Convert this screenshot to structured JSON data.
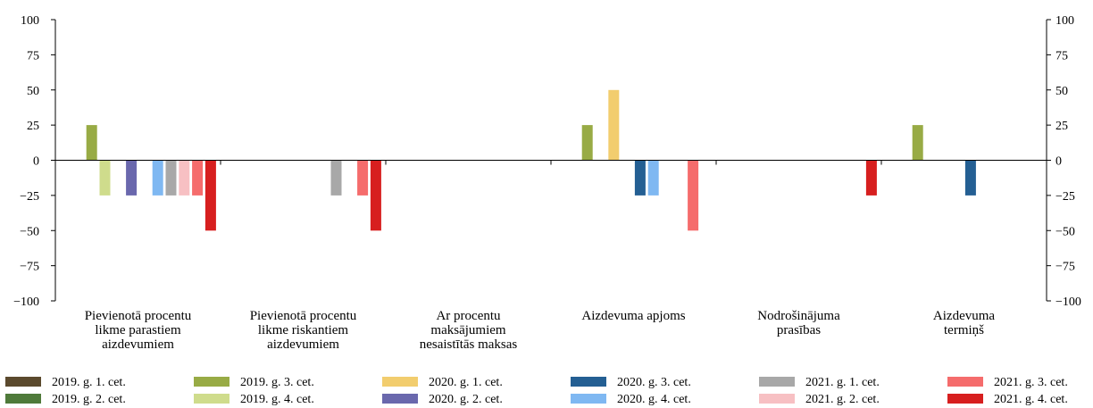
{
  "chart_data": {
    "type": "bar",
    "categories": [
      "Pievienotā procentu likme parastiem aizdevumiem",
      "Pievienotā procentu likme riskantiem aizdevumiem",
      "Ar procentu maksājumiem nesaistītās maksas",
      "Aizdevuma apjoms",
      "Nodrošinājuma prasības",
      "Aizdevuma termiņš"
    ],
    "category_lines": [
      [
        "Pievienotā procentu",
        "likme parastiem",
        "aizdevumiem"
      ],
      [
        "Pievienotā procentu",
        "likme riskantiem",
        "aizdevumiem"
      ],
      [
        "Ar procentu",
        "maksājumiem",
        "nesaistītās maksas"
      ],
      [
        "Aizdevuma apjoms"
      ],
      [
        "Nodrošinājuma",
        "prasības"
      ],
      [
        "Aizdevuma",
        "termiņš"
      ]
    ],
    "series": [
      {
        "name": "2019. g. 1. cet.",
        "color": "#5b4a2e",
        "values": [
          0,
          0,
          0,
          0,
          0,
          0
        ]
      },
      {
        "name": "2019. g. 2. cet.",
        "color": "#4f7a3a",
        "values": [
          0,
          0,
          0,
          0,
          0,
          0
        ]
      },
      {
        "name": "2019. g. 3. cet.",
        "color": "#98ab45",
        "values": [
          25,
          0,
          0,
          25,
          0,
          25
        ]
      },
      {
        "name": "2019. g. 4. cet.",
        "color": "#cfdc8c",
        "values": [
          -25,
          0,
          0,
          0,
          0,
          0
        ]
      },
      {
        "name": "2020. g. 1. cet.",
        "color": "#f2cd6e",
        "values": [
          0,
          0,
          0,
          50,
          0,
          0
        ]
      },
      {
        "name": "2020. g. 2. cet.",
        "color": "#6a68ad",
        "values": [
          -25,
          0,
          0,
          0,
          0,
          0
        ]
      },
      {
        "name": "2020. g. 3. cet.",
        "color": "#245f93",
        "values": [
          0,
          0,
          0,
          -25,
          0,
          -25
        ]
      },
      {
        "name": "2020. g. 4. cet.",
        "color": "#7fb8f2",
        "values": [
          -25,
          0,
          0,
          -25,
          0,
          0
        ]
      },
      {
        "name": "2021. g. 1. cet.",
        "color": "#a8a8a8",
        "values": [
          -25,
          -25,
          0,
          0,
          0,
          0
        ]
      },
      {
        "name": "2021. g. 2. cet.",
        "color": "#f7c0c3",
        "values": [
          -25,
          0,
          0,
          0,
          0,
          0
        ]
      },
      {
        "name": "2021. g. 3. cet.",
        "color": "#f56c6c",
        "values": [
          -25,
          -25,
          0,
          -50,
          0,
          0
        ]
      },
      {
        "name": "2021. g. 4. cet.",
        "color": "#d71f1f",
        "values": [
          -50,
          -50,
          0,
          0,
          -25,
          0
        ]
      }
    ],
    "ylim": [
      -100,
      100
    ],
    "yticks": [
      100,
      75,
      50,
      25,
      0,
      -25,
      -50,
      -75,
      -100
    ],
    "ytick_labels": [
      "100",
      "75",
      "50",
      "25",
      "0",
      "−25",
      "−50",
      "−75",
      "−100"
    ],
    "legend_position": "bottom",
    "grid": false,
    "title": "",
    "xlabel": "",
    "ylabel": ""
  }
}
